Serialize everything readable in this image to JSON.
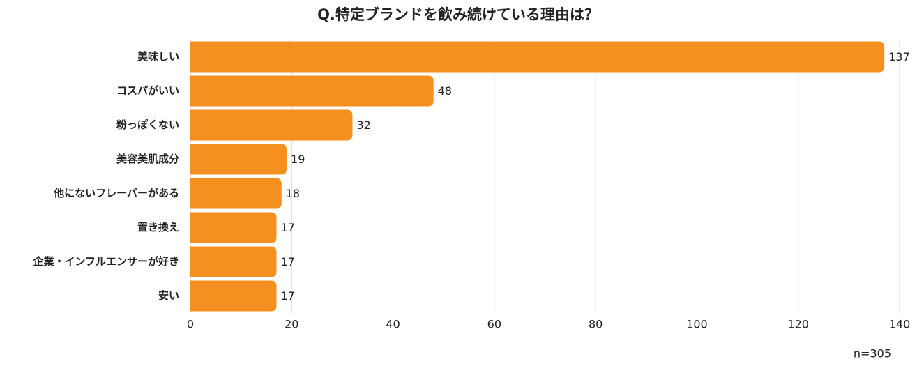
{
  "chart_data": {
    "type": "bar",
    "orientation": "horizontal",
    "title": "Q.特定ブランドを飲み続けている理由は？",
    "categories": [
      "美味しい",
      "コスパがいい",
      "粉っぽくない",
      "美容美肌成分",
      "他にないフレーバーがある",
      "置き換え",
      "企業・インフルエンサーが好き",
      "安い"
    ],
    "values": [
      137,
      48,
      32,
      19,
      18,
      17,
      17,
      17
    ],
    "color": "#f39020",
    "xlim": [
      0,
      140
    ],
    "xticks": [
      0,
      20,
      40,
      60,
      80,
      100,
      120,
      140
    ],
    "grid": true,
    "annotation": "n=305"
  }
}
